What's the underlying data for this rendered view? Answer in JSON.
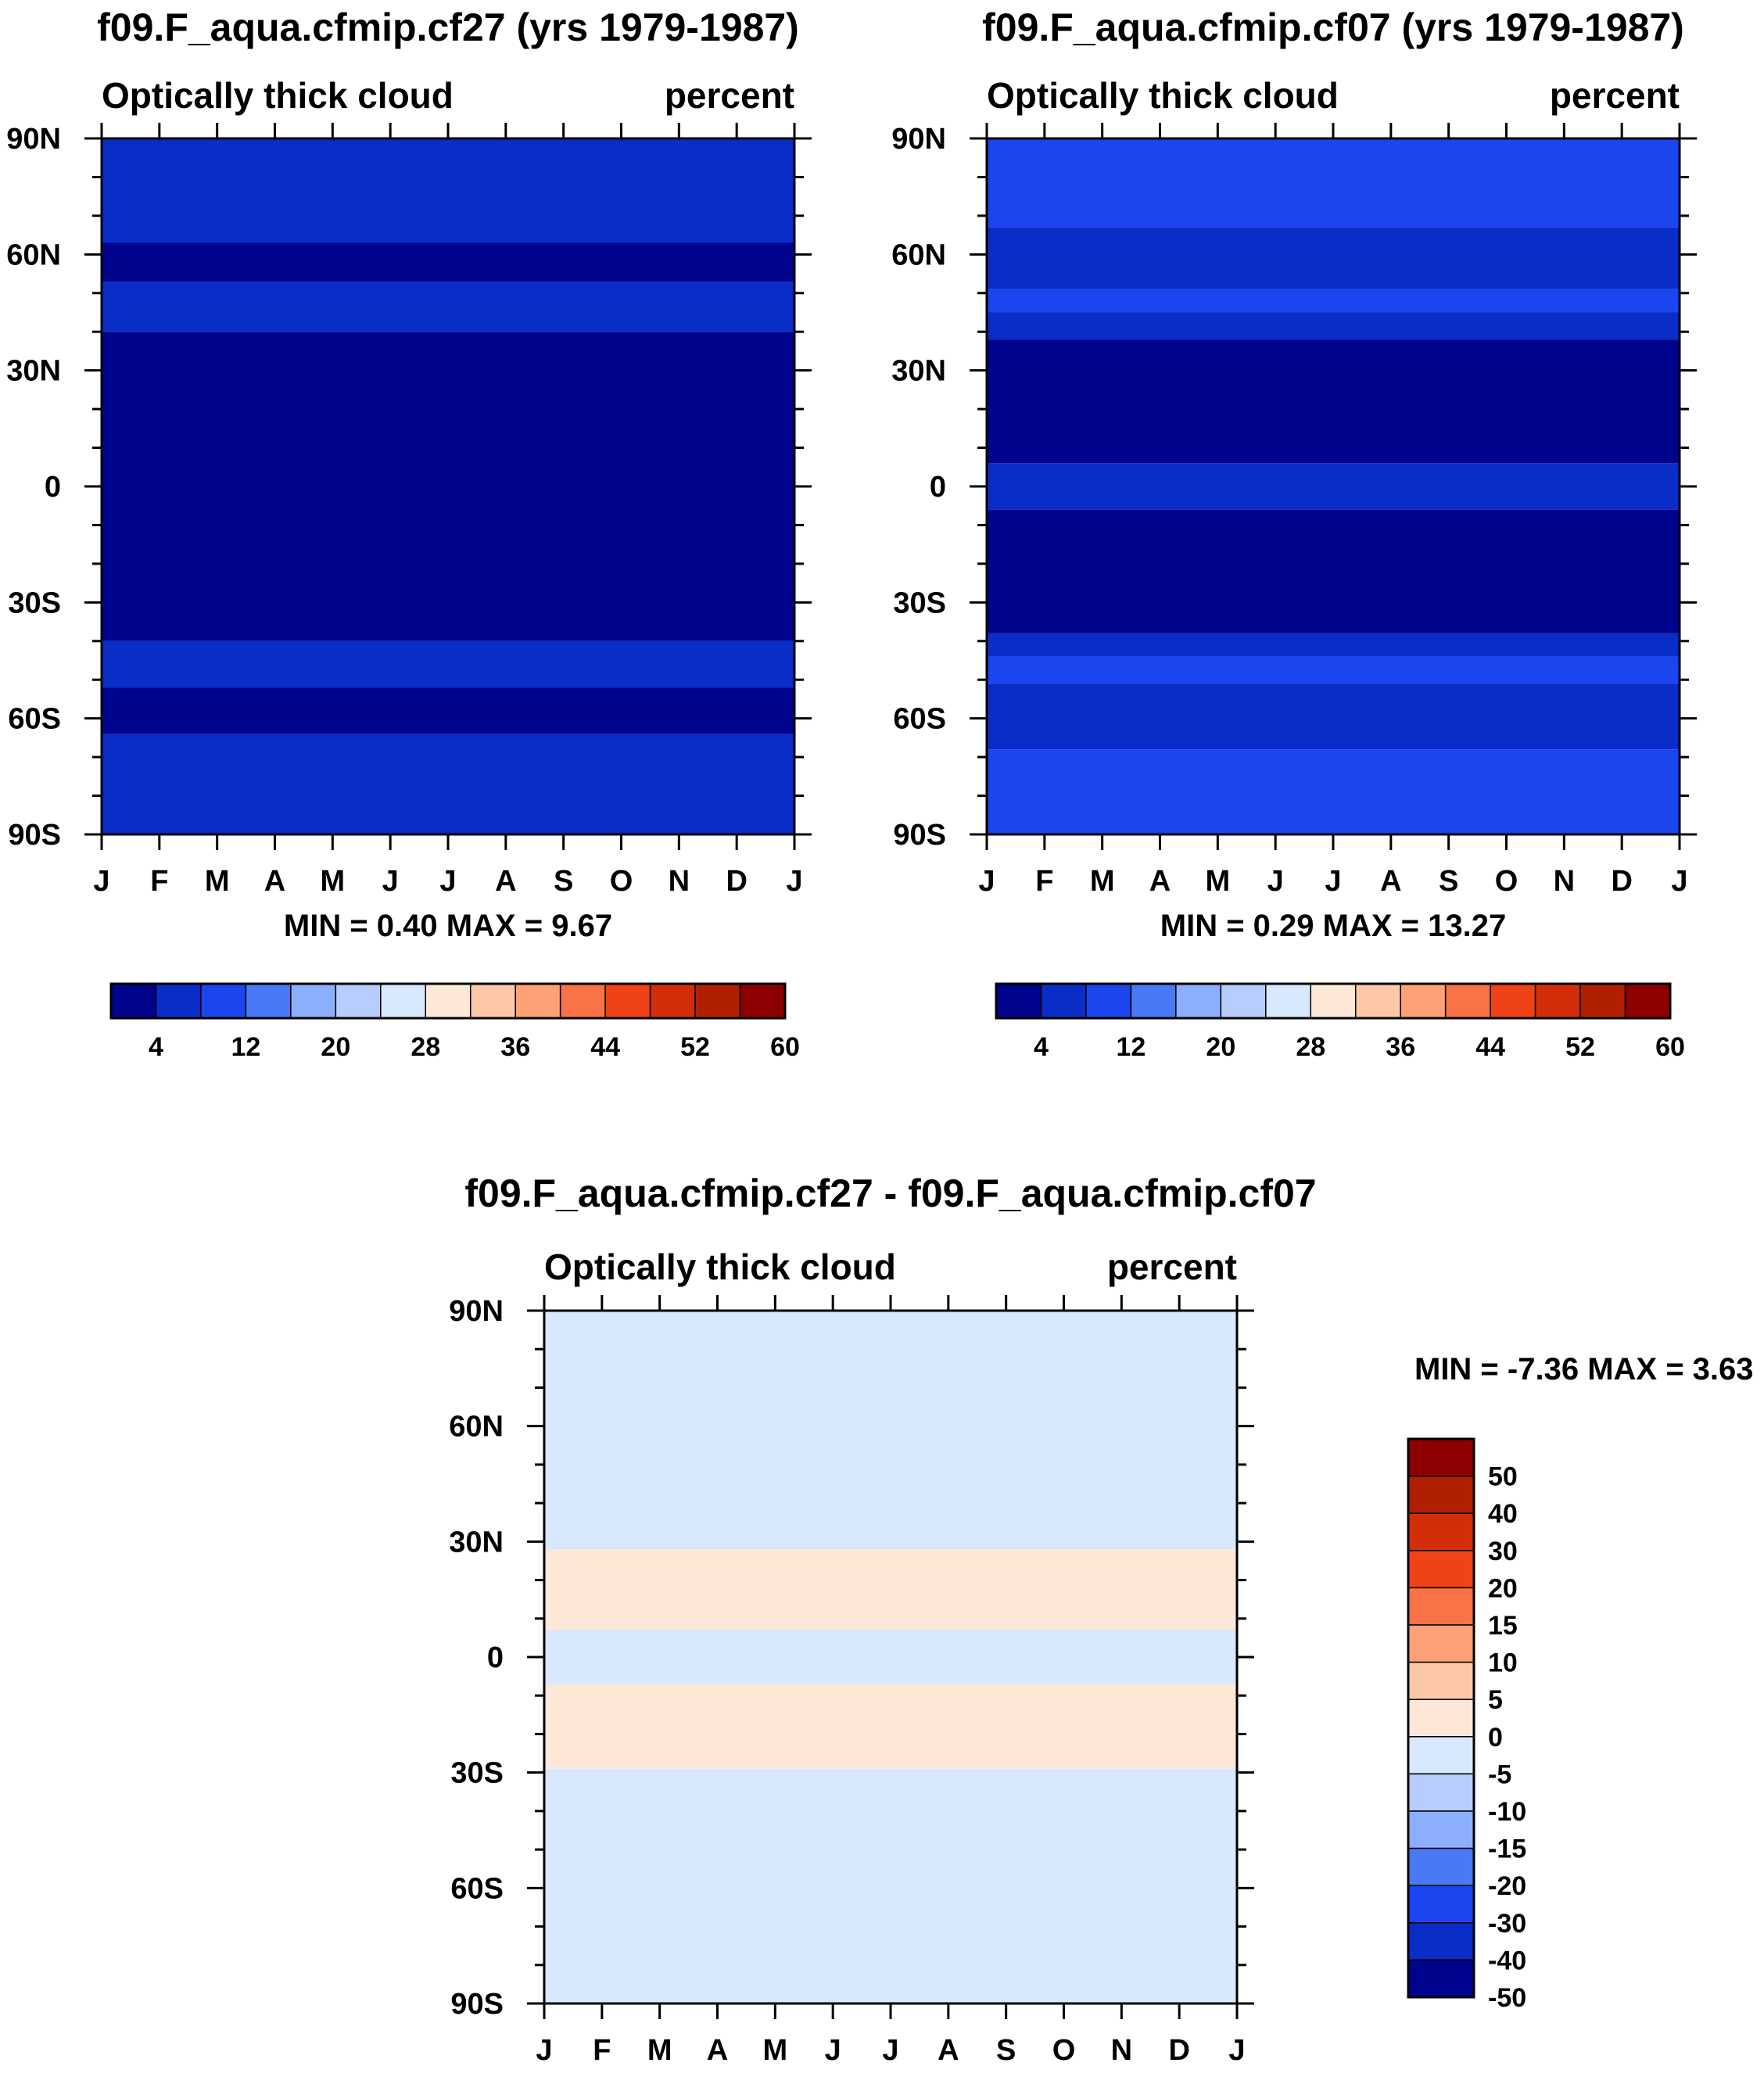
{
  "chart_data": [
    {
      "type": "heatmap",
      "title": "f09.F_aqua.cfmip.cf27 (yrs 1979-1987)",
      "left_label": "Optically thick cloud",
      "right_label": "percent",
      "x_ticks": [
        "J",
        "F",
        "M",
        "A",
        "M",
        "J",
        "J",
        "A",
        "S",
        "O",
        "N",
        "D",
        "J"
      ],
      "y_ticks": [
        "90N",
        "60N",
        "30N",
        "0",
        "30S",
        "60S",
        "90S"
      ],
      "y_values": [
        90,
        60,
        30,
        0,
        -30,
        -60,
        -90
      ],
      "stats_text": "MIN =   0.40 MAX =   9.67",
      "min": 0.4,
      "max": 9.67,
      "bands": [
        {
          "from": 90,
          "to": 63,
          "color": "#0a2cc7"
        },
        {
          "from": 63,
          "to": 53,
          "color": "#00048c"
        },
        {
          "from": 53,
          "to": 40,
          "color": "#0a2cc7"
        },
        {
          "from": 40,
          "to": -40,
          "color": "#00048c"
        },
        {
          "from": -40,
          "to": -52,
          "color": "#0a2cc7"
        },
        {
          "from": -52,
          "to": -64,
          "color": "#00048c"
        },
        {
          "from": -64,
          "to": -90,
          "color": "#0a2cc7"
        }
      ],
      "colorbar": {
        "labels": [
          "4",
          "12",
          "20",
          "28",
          "36",
          "44",
          "52",
          "60"
        ],
        "colors": [
          "#00048c",
          "#0a2cc7",
          "#1b45ee",
          "#4a79f7",
          "#8caffd",
          "#b6cdfd",
          "#d8e8fd",
          "#fde8d8",
          "#fdc8a8",
          "#fda276",
          "#fa7247",
          "#ef4216",
          "#d22e0a",
          "#b02000",
          "#8c0000"
        ]
      }
    },
    {
      "type": "heatmap",
      "title": "f09.F_aqua.cfmip.cf07 (yrs 1979-1987)",
      "left_label": "Optically thick cloud",
      "right_label": "percent",
      "x_ticks": [
        "J",
        "F",
        "M",
        "A",
        "M",
        "J",
        "J",
        "A",
        "S",
        "O",
        "N",
        "D",
        "J"
      ],
      "y_ticks": [
        "90N",
        "60N",
        "30N",
        "0",
        "30S",
        "60S",
        "90S"
      ],
      "y_values": [
        90,
        60,
        30,
        0,
        -30,
        -60,
        -90
      ],
      "stats_text": "MIN =   0.29 MAX =  13.27",
      "min": 0.29,
      "max": 13.27,
      "bands": [
        {
          "from": 90,
          "to": 67,
          "color": "#1b45ee"
        },
        {
          "from": 67,
          "to": 51,
          "color": "#0a2cc7"
        },
        {
          "from": 51,
          "to": 45,
          "color": "#1b45ee"
        },
        {
          "from": 45,
          "to": 38,
          "color": "#0a2cc7"
        },
        {
          "from": 38,
          "to": 6,
          "color": "#00048c"
        },
        {
          "from": 6,
          "to": -6,
          "color": "#0a2cc7"
        },
        {
          "from": -6,
          "to": -38,
          "color": "#00048c"
        },
        {
          "from": -38,
          "to": -44,
          "color": "#0a2cc7"
        },
        {
          "from": -44,
          "to": -51,
          "color": "#1b45ee"
        },
        {
          "from": -51,
          "to": -68,
          "color": "#0a2cc7"
        },
        {
          "from": -68,
          "to": -90,
          "color": "#1b45ee"
        }
      ],
      "colorbar": {
        "labels": [
          "4",
          "12",
          "20",
          "28",
          "36",
          "44",
          "52",
          "60"
        ],
        "colors": [
          "#00048c",
          "#0a2cc7",
          "#1b45ee",
          "#4a79f7",
          "#8caffd",
          "#b6cdfd",
          "#d8e8fd",
          "#fde8d8",
          "#fdc8a8",
          "#fda276",
          "#fa7247",
          "#ef4216",
          "#d22e0a",
          "#b02000",
          "#8c0000"
        ]
      }
    },
    {
      "type": "heatmap",
      "title": "f09.F_aqua.cfmip.cf27 - f09.F_aqua.cfmip.cf07",
      "left_label": "Optically thick cloud",
      "right_label": "percent",
      "x_ticks": [
        "J",
        "F",
        "M",
        "A",
        "M",
        "J",
        "J",
        "A",
        "S",
        "O",
        "N",
        "D",
        "J"
      ],
      "y_ticks": [
        "90N",
        "60N",
        "30N",
        "0",
        "30S",
        "60S",
        "90S"
      ],
      "y_values": [
        90,
        60,
        30,
        0,
        -30,
        -60,
        -90
      ],
      "stats_text": "MIN =  -7.36 MAX =   3.63",
      "min": -7.36,
      "max": 3.63,
      "bands": [
        {
          "from": 90,
          "to": 28,
          "color": "#d8e8fd"
        },
        {
          "from": 28,
          "to": 7,
          "color": "#fde8d8"
        },
        {
          "from": 7,
          "to": -7,
          "color": "#d8e8fd"
        },
        {
          "from": -7,
          "to": -29,
          "color": "#fde8d8"
        },
        {
          "from": -29,
          "to": -90,
          "color": "#d8e8fd"
        }
      ],
      "colorbar": {
        "labels": [
          "50",
          "40",
          "30",
          "20",
          "15",
          "10",
          "5",
          "0",
          "-5",
          "-10",
          "-15",
          "-20",
          "-30",
          "-40",
          "-50"
        ],
        "colors": [
          "#8c0000",
          "#b02000",
          "#d22e0a",
          "#ef4216",
          "#fa7247",
          "#fda276",
          "#fdc8a8",
          "#fde8d8",
          "#d8e8fd",
          "#b6cdfd",
          "#8caffd",
          "#4a79f7",
          "#1b45ee",
          "#0a2cc7",
          "#00048c"
        ]
      }
    }
  ]
}
